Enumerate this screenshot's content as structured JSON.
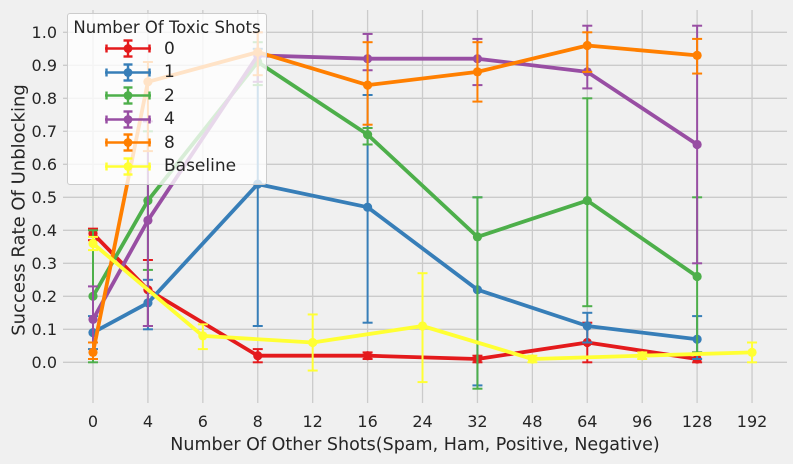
{
  "figure": {
    "background_color": "#f0f0f0",
    "grid_color": "#cbcbcb",
    "text_color": "#262626"
  },
  "chart_data": {
    "type": "line",
    "title": "",
    "xlabel": "Number Of Other Shots(Spam, Ham, Positive, Negative)",
    "ylabel": "Success Rate Of Unblocking",
    "x_tick_labels": [
      "0",
      "4",
      "6",
      "8",
      "12",
      "16",
      "24",
      "32",
      "48",
      "64",
      "96",
      "128",
      "192"
    ],
    "y_tick_values": [
      0.0,
      0.1,
      0.2,
      0.3,
      0.4,
      0.5,
      0.6,
      0.7,
      0.8,
      0.9,
      1.0
    ],
    "grid": true,
    "legend": {
      "title": "Number Of Toxic Shots",
      "position": "upper left"
    },
    "series": [
      {
        "name": "0",
        "color": "#e41a1c",
        "x_values": [
          0,
          4,
          8,
          16,
          32,
          64,
          128
        ],
        "x_tick_idx": [
          0,
          1,
          3,
          5,
          7,
          9,
          11
        ],
        "y": [
          0.39,
          0.22,
          0.02,
          0.02,
          0.01,
          0.06,
          0.01
        ],
        "err_minus": [
          0.02,
          0.11,
          0.02,
          0.01,
          0.01,
          0.06,
          0.01
        ],
        "err_plus": [
          0.015,
          0.09,
          0.02,
          0.01,
          0.01,
          0.06,
          0.02
        ]
      },
      {
        "name": "1",
        "color": "#377eb8",
        "x_values": [
          0,
          4,
          8,
          16,
          32,
          64,
          128
        ],
        "x_tick_idx": [
          0,
          1,
          3,
          5,
          7,
          9,
          11
        ],
        "y": [
          0.09,
          0.18,
          0.54,
          0.47,
          0.22,
          0.11,
          0.07
        ],
        "err_minus": [
          0.05,
          0.08,
          0.43,
          0.35,
          0.29,
          0.05,
          0.06
        ],
        "err_plus": [
          0.05,
          0.07,
          0.41,
          0.34,
          0.28,
          0.04,
          0.07
        ]
      },
      {
        "name": "2",
        "color": "#4daf4a",
        "x_values": [
          0,
          4,
          8,
          16,
          32,
          64,
          128
        ],
        "x_tick_idx": [
          0,
          1,
          3,
          5,
          7,
          9,
          11
        ],
        "y": [
          0.2,
          0.49,
          0.91,
          0.69,
          0.38,
          0.49,
          0.26
        ],
        "err_minus": [
          0.2,
          0.21,
          0.07,
          0.03,
          0.46,
          0.32,
          0.23
        ],
        "err_plus": [
          0.2,
          0.21,
          0.06,
          0.02,
          0.12,
          0.31,
          0.24
        ]
      },
      {
        "name": "4",
        "color": "#984ea3",
        "x_values": [
          0,
          4,
          8,
          16,
          32,
          64,
          128
        ],
        "x_tick_idx": [
          0,
          1,
          3,
          5,
          7,
          9,
          11
        ],
        "y": [
          0.13,
          0.43,
          0.93,
          0.92,
          0.92,
          0.88,
          0.66
        ],
        "err_minus": [
          0.07,
          0.32,
          0.08,
          0.035,
          0.08,
          0.05,
          0.36
        ],
        "err_plus": [
          0.1,
          0.3,
          0.07,
          0.075,
          0.06,
          0.14,
          0.36
        ]
      },
      {
        "name": "8",
        "color": "#ff7f00",
        "x_values": [
          0,
          4,
          8,
          16,
          32,
          64,
          128
        ],
        "x_tick_idx": [
          0,
          1,
          3,
          5,
          7,
          9,
          11
        ],
        "y": [
          0.03,
          0.85,
          0.94,
          0.84,
          0.88,
          0.96,
          0.93
        ],
        "err_minus": [
          0.02,
          0.21,
          0.07,
          0.12,
          0.09,
          0.08,
          0.055
        ],
        "err_plus": [
          0.03,
          0.06,
          0.06,
          0.13,
          0.09,
          0.04,
          0.05
        ]
      },
      {
        "name": "Baseline",
        "color": "#ffff33",
        "x_values": [
          0,
          6,
          12,
          24,
          48,
          96,
          192
        ],
        "x_tick_idx": [
          0,
          2,
          4,
          6,
          8,
          10,
          12
        ],
        "y": [
          0.36,
          0.08,
          0.06,
          0.11,
          0.01,
          0.02,
          0.03
        ],
        "err_minus": [
          0.02,
          0.04,
          0.085,
          0.17,
          0.01,
          0.01,
          0.03
        ],
        "err_plus": [
          0.02,
          0.035,
          0.085,
          0.16,
          0.01,
          0.01,
          0.03
        ]
      }
    ]
  }
}
